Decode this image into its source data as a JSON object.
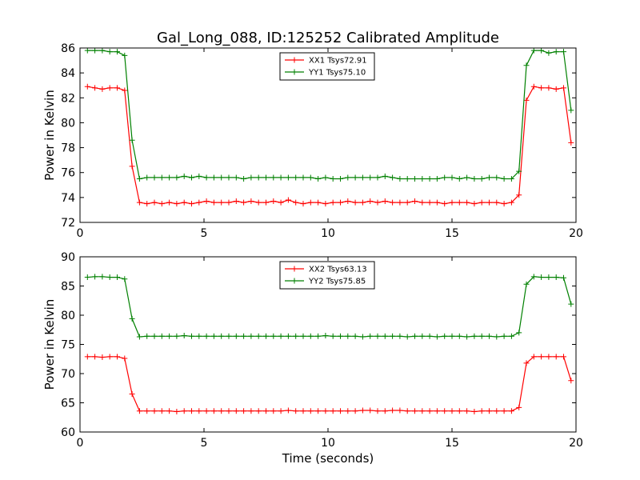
{
  "figure": {
    "title": "Gal_Long_088, ID:125252 Calibrated Amplitude"
  },
  "chart_data": [
    {
      "type": "line",
      "title": "Gal_Long_088, ID:125252 Calibrated Amplitude",
      "xlabel": "",
      "ylabel": "Power in Kelvin",
      "xlim": [
        0,
        20
      ],
      "ylim": [
        72,
        86
      ],
      "xticks": [
        0,
        5,
        10,
        15,
        20
      ],
      "yticks": [
        72,
        74,
        76,
        78,
        80,
        82,
        84,
        86
      ],
      "grid": false,
      "legend_position": "top-center",
      "x": [
        0.3,
        0.6,
        0.9,
        1.2,
        1.5,
        1.8,
        2.1,
        2.4,
        2.7,
        3.0,
        3.3,
        3.6,
        3.9,
        4.2,
        4.5,
        4.8,
        5.1,
        5.4,
        5.7,
        6.0,
        6.3,
        6.6,
        6.9,
        7.2,
        7.5,
        7.8,
        8.1,
        8.4,
        8.7,
        9.0,
        9.3,
        9.6,
        9.9,
        10.2,
        10.5,
        10.8,
        11.1,
        11.4,
        11.7,
        12.0,
        12.3,
        12.6,
        12.9,
        13.2,
        13.5,
        13.8,
        14.1,
        14.4,
        14.7,
        15.0,
        15.3,
        15.6,
        15.9,
        16.2,
        16.5,
        16.8,
        17.1,
        17.4,
        17.7,
        18.0,
        18.3,
        18.6,
        18.9,
        19.2,
        19.5,
        19.8
      ],
      "series": [
        {
          "name": "XX1 Tsys72.91",
          "color": "#ff0000",
          "values": [
            82.9,
            82.8,
            82.7,
            82.8,
            82.8,
            82.6,
            76.5,
            73.6,
            73.5,
            73.6,
            73.5,
            73.6,
            73.5,
            73.6,
            73.5,
            73.6,
            73.7,
            73.6,
            73.6,
            73.6,
            73.7,
            73.6,
            73.7,
            73.6,
            73.6,
            73.7,
            73.6,
            73.8,
            73.6,
            73.5,
            73.6,
            73.6,
            73.5,
            73.6,
            73.6,
            73.7,
            73.6,
            73.6,
            73.7,
            73.6,
            73.7,
            73.6,
            73.6,
            73.6,
            73.7,
            73.6,
            73.6,
            73.6,
            73.5,
            73.6,
            73.6,
            73.6,
            73.5,
            73.6,
            73.6,
            73.6,
            73.5,
            73.6,
            74.2,
            81.8,
            82.9,
            82.8,
            82.8,
            82.7,
            82.8,
            78.4
          ]
        },
        {
          "name": "YY1 Tsys75.10",
          "color": "#008000",
          "values": [
            85.8,
            85.8,
            85.8,
            85.7,
            85.7,
            85.4,
            78.6,
            75.5,
            75.6,
            75.6,
            75.6,
            75.6,
            75.6,
            75.7,
            75.6,
            75.7,
            75.6,
            75.6,
            75.6,
            75.6,
            75.6,
            75.5,
            75.6,
            75.6,
            75.6,
            75.6,
            75.6,
            75.6,
            75.6,
            75.6,
            75.6,
            75.5,
            75.6,
            75.5,
            75.5,
            75.6,
            75.6,
            75.6,
            75.6,
            75.6,
            75.7,
            75.6,
            75.5,
            75.5,
            75.5,
            75.5,
            75.5,
            75.5,
            75.6,
            75.6,
            75.5,
            75.6,
            75.5,
            75.5,
            75.6,
            75.6,
            75.5,
            75.5,
            76.1,
            84.6,
            85.8,
            85.8,
            85.6,
            85.7,
            85.7,
            81.0
          ]
        }
      ]
    },
    {
      "type": "line",
      "title": "",
      "xlabel": "Time (seconds)",
      "ylabel": "Power in Kelvin",
      "xlim": [
        0,
        20
      ],
      "ylim": [
        60,
        90
      ],
      "xticks": [
        0,
        5,
        10,
        15,
        20
      ],
      "yticks": [
        60,
        65,
        70,
        75,
        80,
        85,
        90
      ],
      "grid": false,
      "legend_position": "top-center",
      "x": [
        0.3,
        0.6,
        0.9,
        1.2,
        1.5,
        1.8,
        2.1,
        2.4,
        2.7,
        3.0,
        3.3,
        3.6,
        3.9,
        4.2,
        4.5,
        4.8,
        5.1,
        5.4,
        5.7,
        6.0,
        6.3,
        6.6,
        6.9,
        7.2,
        7.5,
        7.8,
        8.1,
        8.4,
        8.7,
        9.0,
        9.3,
        9.6,
        9.9,
        10.2,
        10.5,
        10.8,
        11.1,
        11.4,
        11.7,
        12.0,
        12.3,
        12.6,
        12.9,
        13.2,
        13.5,
        13.8,
        14.1,
        14.4,
        14.7,
        15.0,
        15.3,
        15.6,
        15.9,
        16.2,
        16.5,
        16.8,
        17.1,
        17.4,
        17.7,
        18.0,
        18.3,
        18.6,
        18.9,
        19.2,
        19.5,
        19.8
      ],
      "series": [
        {
          "name": "XX2 Tsys63.13",
          "color": "#ff0000",
          "values": [
            72.9,
            72.9,
            72.8,
            72.9,
            72.9,
            72.6,
            66.5,
            63.6,
            63.6,
            63.6,
            63.6,
            63.6,
            63.5,
            63.6,
            63.6,
            63.6,
            63.6,
            63.6,
            63.6,
            63.6,
            63.6,
            63.6,
            63.6,
            63.6,
            63.6,
            63.6,
            63.6,
            63.7,
            63.6,
            63.6,
            63.6,
            63.6,
            63.6,
            63.6,
            63.6,
            63.6,
            63.6,
            63.7,
            63.7,
            63.6,
            63.6,
            63.7,
            63.7,
            63.6,
            63.6,
            63.6,
            63.6,
            63.6,
            63.6,
            63.6,
            63.6,
            63.6,
            63.5,
            63.6,
            63.6,
            63.6,
            63.6,
            63.6,
            64.2,
            71.8,
            72.9,
            72.9,
            72.9,
            72.9,
            72.9,
            68.8
          ]
        },
        {
          "name": "YY2 Tsys75.85",
          "color": "#008000",
          "values": [
            86.5,
            86.6,
            86.6,
            86.5,
            86.5,
            86.2,
            79.4,
            76.3,
            76.4,
            76.4,
            76.4,
            76.4,
            76.4,
            76.5,
            76.4,
            76.4,
            76.4,
            76.4,
            76.4,
            76.4,
            76.4,
            76.4,
            76.4,
            76.4,
            76.4,
            76.4,
            76.4,
            76.4,
            76.4,
            76.4,
            76.4,
            76.4,
            76.5,
            76.4,
            76.4,
            76.4,
            76.4,
            76.3,
            76.4,
            76.4,
            76.4,
            76.4,
            76.4,
            76.3,
            76.4,
            76.4,
            76.4,
            76.3,
            76.4,
            76.4,
            76.4,
            76.3,
            76.4,
            76.4,
            76.4,
            76.3,
            76.4,
            76.4,
            77.0,
            85.3,
            86.6,
            86.5,
            86.5,
            86.5,
            86.4,
            81.9
          ]
        }
      ]
    }
  ]
}
